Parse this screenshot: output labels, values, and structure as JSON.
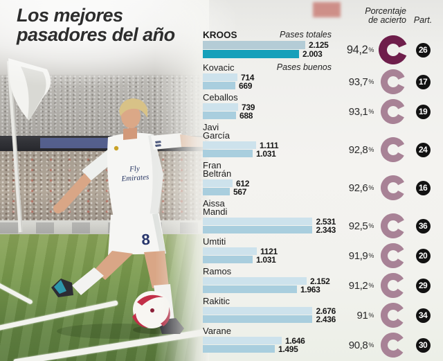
{
  "title": {
    "line1": "Los mejores",
    "line2": "pasadores del año"
  },
  "column_headers": {
    "accuracy_line1": "Porcentaje",
    "accuracy_line2": "de acierto",
    "participations": "Part."
  },
  "series_labels": {
    "totals": "Pases totales",
    "good": "Pases buenos"
  },
  "percent_suffix": "%",
  "jersey": {
    "sponsor_line1": "Fly",
    "sponsor_line2": "Emirates",
    "number": "8"
  },
  "chart_data": {
    "type": "bar",
    "title": "Los mejores pasadores del año",
    "series": [
      "Pases totales",
      "Pases buenos"
    ],
    "x_max": 2676,
    "legend_position": "first-row-inline",
    "players": [
      {
        "display_name": "KROOS",
        "totales": 2125,
        "buenos": 2003,
        "totales_label": "2.125",
        "buenos_label": "2.003",
        "pct": 94.2,
        "pct_label": "94,2",
        "part": 26,
        "highlight": true
      },
      {
        "display_name": "Kovacic",
        "totales": 714,
        "buenos": 669,
        "totales_label": "714",
        "buenos_label": "669",
        "pct": 93.7,
        "pct_label": "93,7",
        "part": 17,
        "highlight": false
      },
      {
        "display_name": "Ceballos",
        "totales": 739,
        "buenos": 688,
        "totales_label": "739",
        "buenos_label": "688",
        "pct": 93.1,
        "pct_label": "93,1",
        "part": 19,
        "highlight": false
      },
      {
        "display_name": "Javi García",
        "totales": 1111,
        "buenos": 1031,
        "totales_label": "1.111",
        "buenos_label": "1.031",
        "pct": 92.8,
        "pct_label": "92,8",
        "part": 24,
        "highlight": false
      },
      {
        "display_name": "Fran Beltrán",
        "totales": 612,
        "buenos": 567,
        "totales_label": "612",
        "buenos_label": "567",
        "pct": 92.6,
        "pct_label": "92,6",
        "part": 16,
        "highlight": false
      },
      {
        "display_name": "Aissa Mandi",
        "totales": 2531,
        "buenos": 2343,
        "totales_label": "2.531",
        "buenos_label": "2.343",
        "pct": 92.5,
        "pct_label": "92,5",
        "part": 36,
        "highlight": false
      },
      {
        "display_name": "Umtiti",
        "totales": 1121,
        "buenos": 1031,
        "totales_label": "1121",
        "buenos_label": "1.031",
        "pct": 91.9,
        "pct_label": "91,9",
        "part": 20,
        "highlight": false
      },
      {
        "display_name": "Ramos",
        "totales": 2152,
        "buenos": 1963,
        "totales_label": "2.152",
        "buenos_label": "1.963",
        "pct": 91.2,
        "pct_label": "91,2",
        "part": 29,
        "highlight": false
      },
      {
        "display_name": "Rakitic",
        "totales": 2676,
        "buenos": 2436,
        "totales_label": "2.676",
        "buenos_label": "2.436",
        "pct": 91.0,
        "pct_label": "91",
        "part": 34,
        "highlight": false
      },
      {
        "display_name": "Varane",
        "totales": 1646,
        "buenos": 1495,
        "totales_label": "1.646",
        "buenos_label": "1.495",
        "pct": 90.8,
        "pct_label": "90,8",
        "part": 30,
        "highlight": false
      }
    ]
  },
  "colors": {
    "bar_total": "#cde2ec",
    "bar_good": "#a9cede",
    "bar_total_highlight": "#b4ccd6",
    "bar_good_highlight": "#17a0ba",
    "ring": "#a88296",
    "ring_highlight": "#6e1e4b",
    "badge_bg": "#121212",
    "badge_text": "#ffffff"
  }
}
